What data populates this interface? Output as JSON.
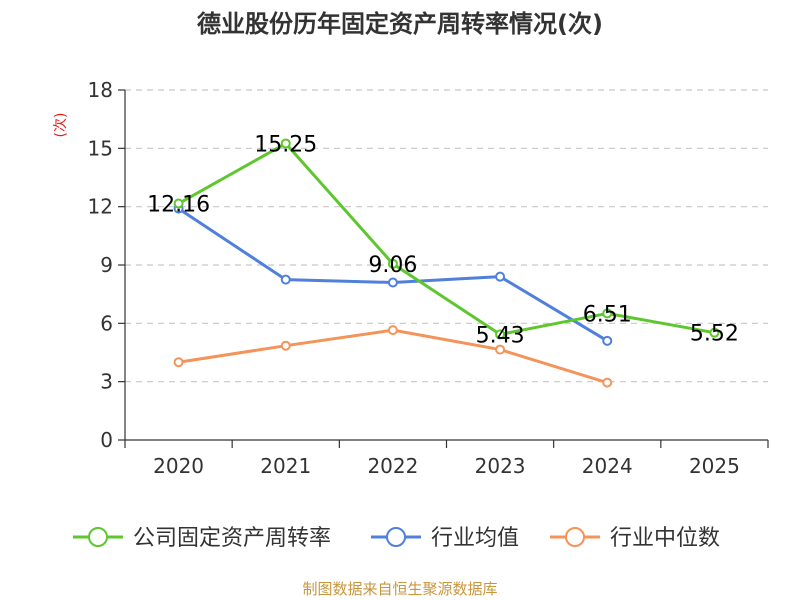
{
  "chart_data": {
    "type": "line",
    "title": "德业股份历年固定资产周转率情况(次)",
    "ylabel": "(次)",
    "xlabel": "",
    "categories": [
      "2020",
      "2021",
      "2022",
      "2023",
      "2024",
      "2025"
    ],
    "ylim": [
      0,
      18
    ],
    "yticks": [
      0,
      3,
      6,
      9,
      12,
      15,
      18
    ],
    "grid": true,
    "legend_position": "bottom",
    "series": [
      {
        "name": "公司固定资产周转率",
        "color": "#5ec62e",
        "values": [
          12.16,
          15.25,
          9.06,
          5.43,
          6.51,
          5.52
        ],
        "labels": [
          "12.16",
          "15.25",
          "9.06",
          "5.43",
          "6.51",
          "5.52"
        ]
      },
      {
        "name": "行业均值",
        "color": "#4f80dc",
        "values": [
          11.9,
          8.25,
          8.1,
          8.4,
          5.1,
          null
        ],
        "labels": []
      },
      {
        "name": "行业中位数",
        "color": "#f4935a",
        "values": [
          4.0,
          4.85,
          5.65,
          4.65,
          2.95,
          null
        ],
        "labels": []
      }
    ],
    "source": "制图数据来自恒生聚源数据库"
  }
}
